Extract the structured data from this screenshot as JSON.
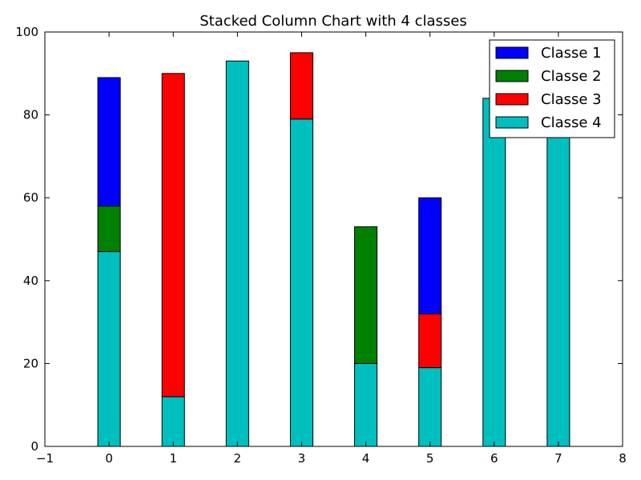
{
  "chart_data": {
    "type": "bar",
    "stacked": true,
    "title": "Stacked Column Chart with 4 classes",
    "xlabel": "",
    "ylabel": "",
    "xlim": [
      -1,
      8
    ],
    "ylim": [
      0,
      100
    ],
    "x_ticks": [
      "−1",
      "0",
      "1",
      "2",
      "3",
      "4",
      "5",
      "6",
      "7",
      "8"
    ],
    "y_ticks": [
      "0",
      "20",
      "40",
      "60",
      "80",
      "100"
    ],
    "categories": [
      "0",
      "1",
      "2",
      "3",
      "4",
      "5",
      "6",
      "7"
    ],
    "series": [
      {
        "name": "Classe 1",
        "color": "#0000ff",
        "values": [
          31,
          0,
          0,
          0,
          0,
          28,
          0,
          0
        ]
      },
      {
        "name": "Classe 2",
        "color": "#008000",
        "values": [
          11,
          0,
          0,
          0,
          33,
          0,
          0,
          0
        ]
      },
      {
        "name": "Classe 3",
        "color": "#ff0000",
        "values": [
          0,
          78,
          0,
          16,
          0,
          13,
          0,
          0
        ]
      },
      {
        "name": "Classe 4",
        "color": "#00bfbf",
        "values": [
          47,
          12,
          93,
          79,
          20,
          19,
          84,
          80
        ]
      }
    ],
    "grid": false,
    "legend_position": "top-right"
  }
}
